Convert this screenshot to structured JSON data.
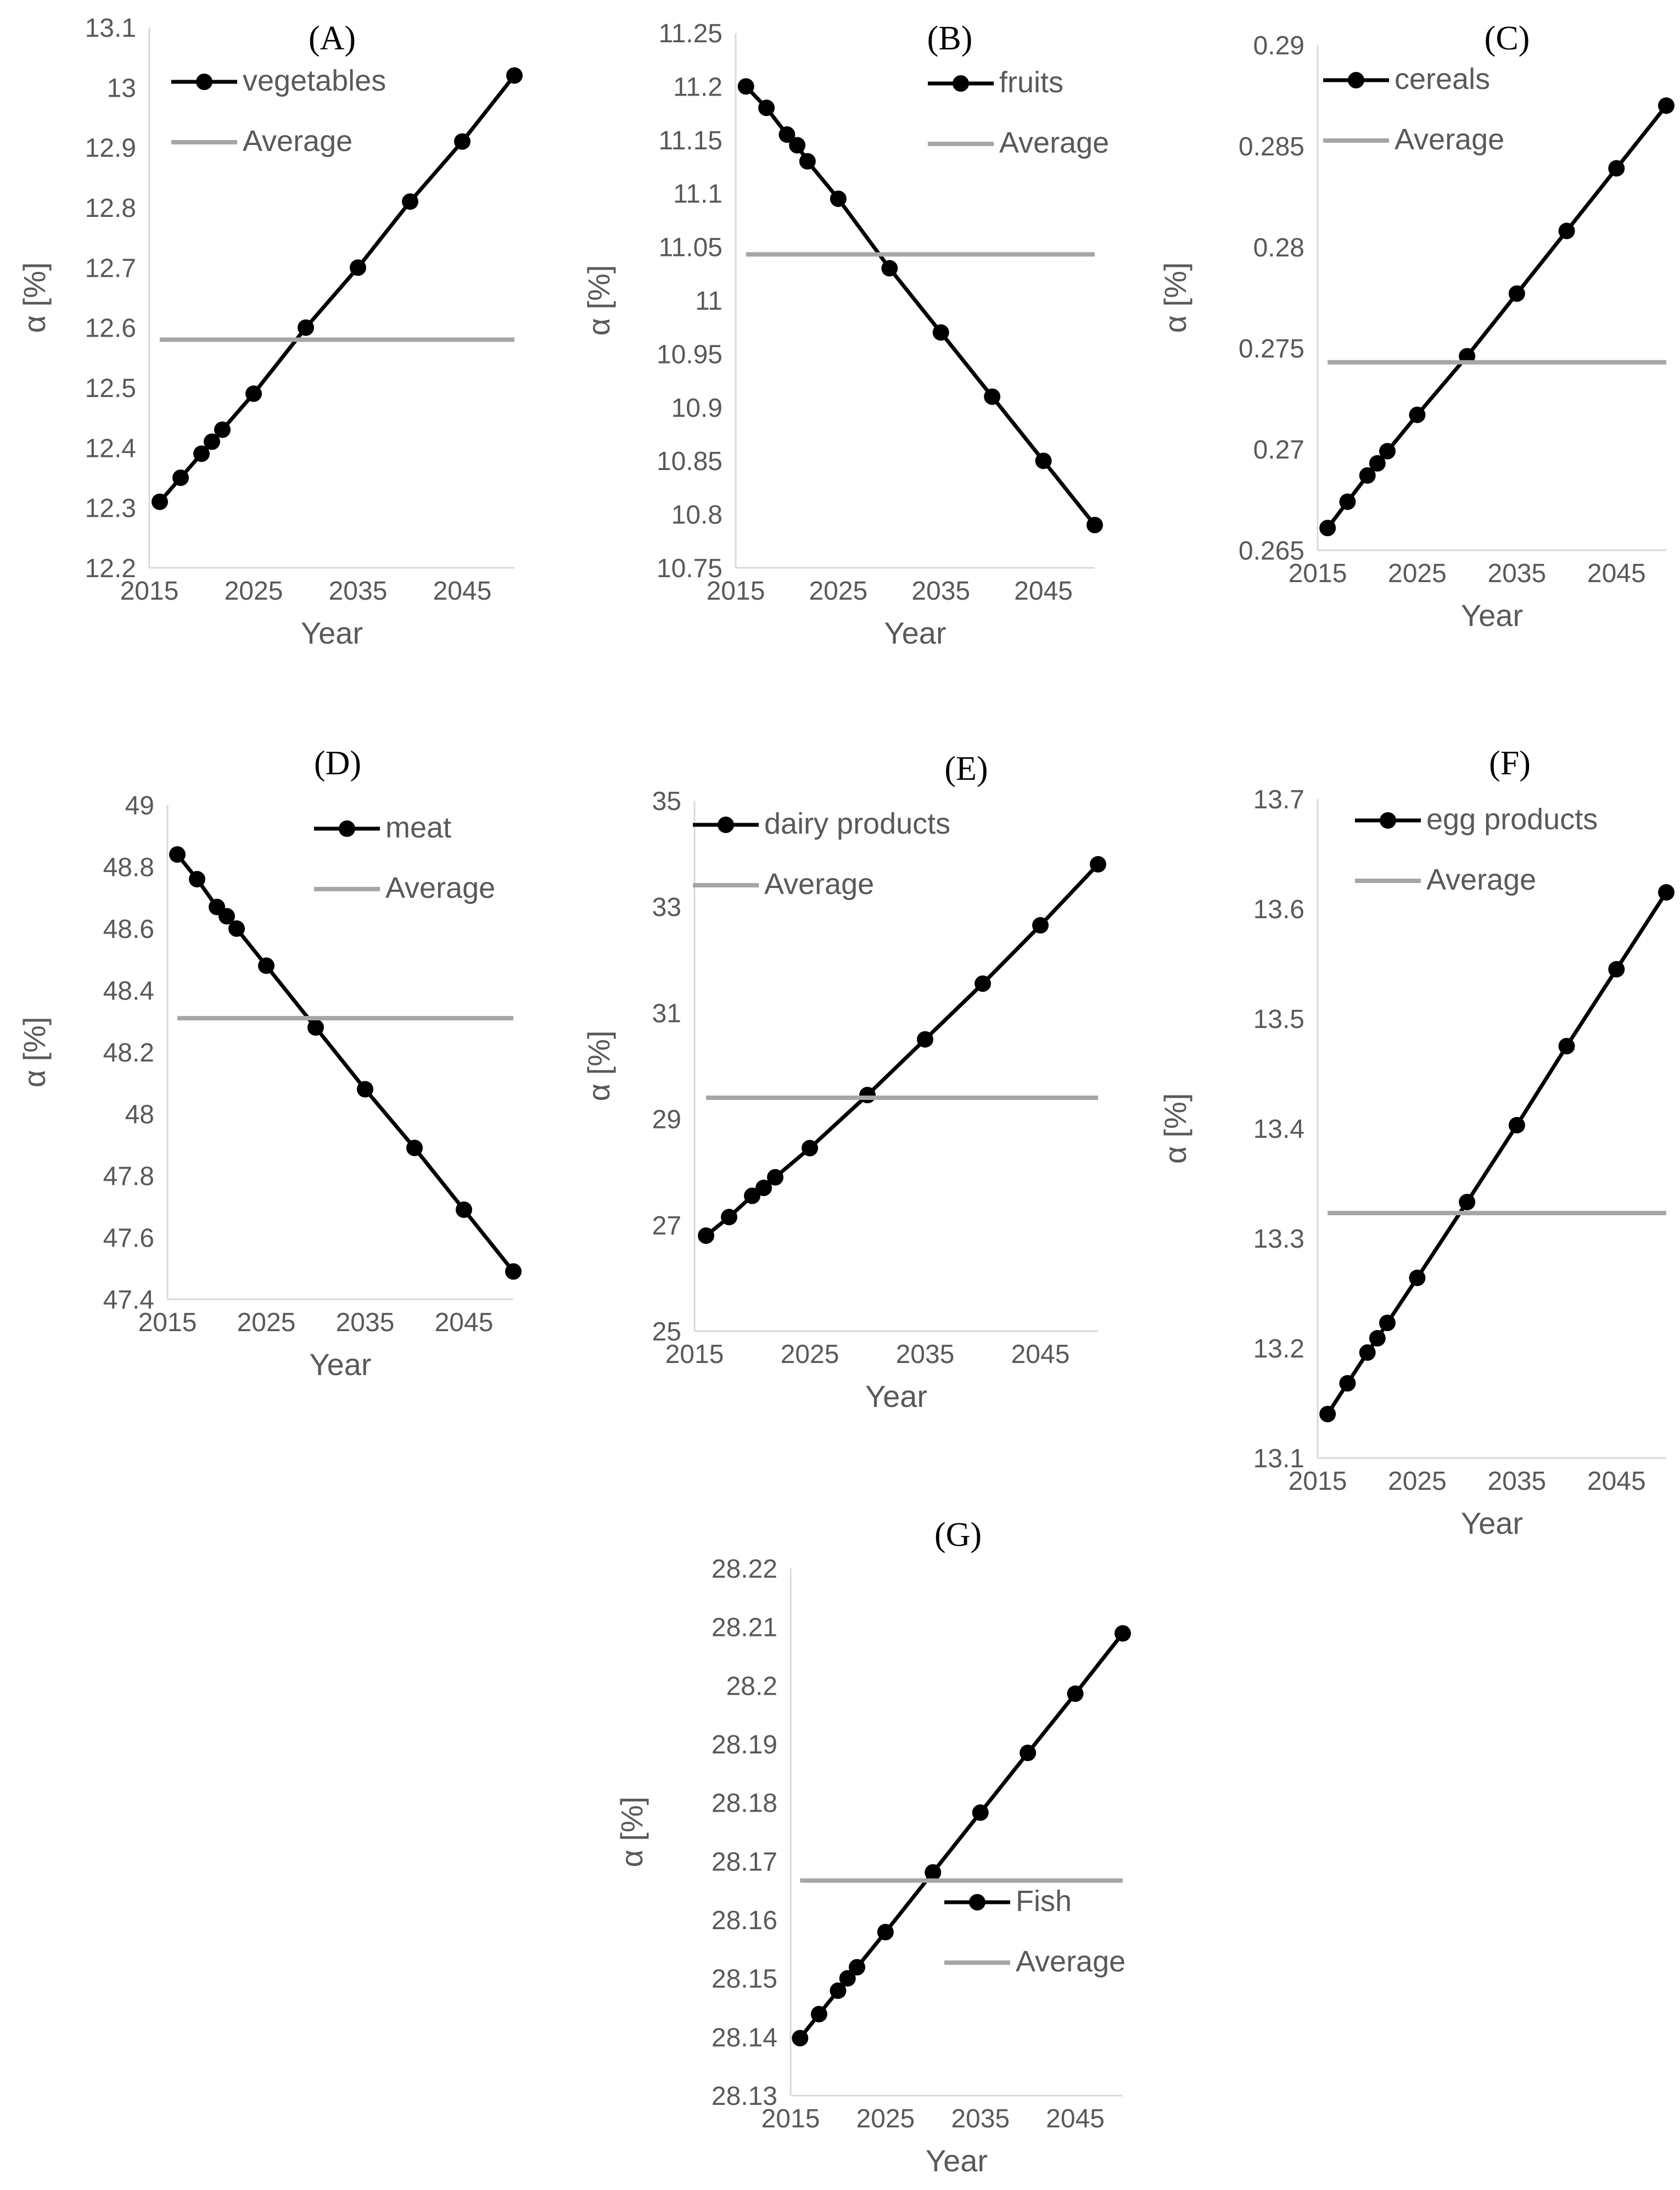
{
  "figure": {
    "xlabel_text": "Year",
    "ylabel_text": "α [%]"
  },
  "chart_data": [
    {
      "type": "line",
      "panel": "A",
      "title": "(A)",
      "xlabel": "Year",
      "ylabel": "α [%]",
      "xlim": [
        2015,
        2050
      ],
      "ylim": [
        12.2,
        13.1
      ],
      "x_ticks": [
        2015,
        2025,
        2035,
        2045
      ],
      "y_ticks": [
        "12.2",
        "12.3",
        "12.4",
        "12.5",
        "12.6",
        "12.7",
        "12.8",
        "12.9",
        "13",
        "13.1"
      ],
      "legend_position": "top-left",
      "series": [
        {
          "name": "vegetables",
          "color": "#000000",
          "marker": "circle",
          "x": [
            2016,
            2018,
            2020,
            2021,
            2022,
            2025,
            2030,
            2035,
            2040,
            2045,
            2050
          ],
          "y": [
            12.31,
            12.35,
            12.39,
            12.41,
            12.43,
            12.49,
            12.6,
            12.7,
            12.81,
            12.91,
            13.02
          ]
        },
        {
          "name": "Average",
          "color": "#a6a6a6",
          "marker": "none",
          "x": [
            2016,
            2050
          ],
          "y": [
            12.58,
            12.58
          ]
        }
      ]
    },
    {
      "type": "line",
      "panel": "B",
      "title": "(B)",
      "xlabel": "Year",
      "ylabel": "α [%]",
      "xlim": [
        2015,
        2050
      ],
      "ylim": [
        10.75,
        11.25
      ],
      "x_ticks": [
        2015,
        2025,
        2035,
        2045
      ],
      "y_ticks": [
        "10.75",
        "10.8",
        "10.85",
        "10.9",
        "10.95",
        "11",
        "11.05",
        "11.1",
        "11.15",
        "11.2",
        "11.25"
      ],
      "legend_position": "top-right",
      "series": [
        {
          "name": "fruits",
          "color": "#000000",
          "marker": "circle",
          "x": [
            2016,
            2018,
            2020,
            2021,
            2022,
            2025,
            2030,
            2035,
            2040,
            2045,
            2050
          ],
          "y": [
            11.2,
            11.18,
            11.155,
            11.145,
            11.13,
            11.095,
            11.03,
            10.97,
            10.91,
            10.85,
            10.79
          ]
        },
        {
          "name": "Average",
          "color": "#a6a6a6",
          "marker": "none",
          "x": [
            2016,
            2050
          ],
          "y": [
            11.043,
            11.043
          ]
        }
      ]
    },
    {
      "type": "line",
      "panel": "C",
      "title": "(C)",
      "xlabel": "Year",
      "ylabel": "α [%]",
      "xlim": [
        2015,
        2050
      ],
      "ylim": [
        0.265,
        0.29
      ],
      "x_ticks": [
        2015,
        2025,
        2035,
        2045
      ],
      "y_ticks": [
        "0.265",
        "0.27",
        "0.275",
        "0.28",
        "0.285",
        "0.29"
      ],
      "legend_position": "top-left",
      "series": [
        {
          "name": "cereals",
          "color": "#000000",
          "marker": "circle",
          "x": [
            2016,
            2018,
            2020,
            2021,
            2022,
            2025,
            2030,
            2035,
            2040,
            2045,
            2050
          ],
          "y": [
            0.2661,
            0.2674,
            0.2687,
            0.2693,
            0.2699,
            0.2717,
            0.2746,
            0.2777,
            0.2808,
            0.2839,
            0.287
          ]
        },
        {
          "name": "Average",
          "color": "#a6a6a6",
          "marker": "none",
          "x": [
            2016,
            2050
          ],
          "y": [
            0.2743,
            0.2743
          ]
        }
      ]
    },
    {
      "type": "line",
      "panel": "D",
      "title": "(D)",
      "xlabel": "Year",
      "ylabel": "α [%]",
      "xlim": [
        2015,
        2050
      ],
      "ylim": [
        47.4,
        49
      ],
      "x_ticks": [
        2015,
        2025,
        2035,
        2045
      ],
      "y_ticks": [
        "47.4",
        "47.6",
        "47.8",
        "48",
        "48.2",
        "48.4",
        "48.6",
        "48.8",
        "49"
      ],
      "legend_position": "top-right",
      "series": [
        {
          "name": "meat",
          "color": "#000000",
          "marker": "circle",
          "x": [
            2016,
            2018,
            2020,
            2021,
            2022,
            2025,
            2030,
            2035,
            2040,
            2045,
            2050
          ],
          "y": [
            48.84,
            48.76,
            48.67,
            48.64,
            48.6,
            48.48,
            48.28,
            48.08,
            47.89,
            47.69,
            47.49
          ]
        },
        {
          "name": "Average",
          "color": "#a6a6a6",
          "marker": "none",
          "x": [
            2016,
            2050
          ],
          "y": [
            48.31,
            48.31
          ]
        }
      ]
    },
    {
      "type": "line",
      "panel": "E",
      "title": "(E)",
      "xlabel": "Year",
      "ylabel": "α [%]",
      "xlim": [
        2015,
        2050
      ],
      "ylim": [
        25,
        35
      ],
      "x_ticks": [
        2015,
        2025,
        2035,
        2045
      ],
      "y_ticks": [
        "25",
        "27",
        "29",
        "31",
        "33",
        "35"
      ],
      "legend_position": "top-left",
      "series": [
        {
          "name": "dairy products",
          "color": "#000000",
          "marker": "circle",
          "x": [
            2016,
            2018,
            2020,
            2021,
            2022,
            2025,
            2030,
            2035,
            2040,
            2045,
            2050
          ],
          "y": [
            26.8,
            27.15,
            27.55,
            27.7,
            27.9,
            28.45,
            29.45,
            30.5,
            31.55,
            32.65,
            33.8
          ]
        },
        {
          "name": "Average",
          "color": "#a6a6a6",
          "marker": "none",
          "x": [
            2016,
            2050
          ],
          "y": [
            29.4,
            29.4
          ]
        }
      ]
    },
    {
      "type": "line",
      "panel": "F",
      "title": "(F)",
      "xlabel": "Year",
      "ylabel": "α [%]",
      "xlim": [
        2015,
        2050
      ],
      "ylim": [
        13.1,
        13.7
      ],
      "x_ticks": [
        2015,
        2025,
        2035,
        2045
      ],
      "y_ticks": [
        "13.1",
        "13.2",
        "13.3",
        "13.4",
        "13.5",
        "13.6",
        "13.7"
      ],
      "legend_position": "top-left",
      "series": [
        {
          "name": "egg products",
          "color": "#000000",
          "marker": "circle",
          "x": [
            2016,
            2018,
            2020,
            2021,
            2022,
            2025,
            2030,
            2035,
            2040,
            2045,
            2050
          ],
          "y": [
            13.14,
            13.168,
            13.196,
            13.209,
            13.223,
            13.264,
            13.333,
            13.403,
            13.475,
            13.545,
            13.615
          ]
        },
        {
          "name": "Average",
          "color": "#a6a6a6",
          "marker": "none",
          "x": [
            2016,
            2050
          ],
          "y": [
            13.323,
            13.323
          ]
        }
      ]
    },
    {
      "type": "line",
      "panel": "G",
      "title": "(G)",
      "xlabel": "Year",
      "ylabel": "α [%]",
      "xlim": [
        2015,
        2050
      ],
      "ylim": [
        28.13,
        28.22
      ],
      "x_ticks": [
        2015,
        2025,
        2035,
        2045
      ],
      "y_ticks": [
        "28.13",
        "28.14",
        "28.15",
        "28.16",
        "28.17",
        "28.18",
        "28.19",
        "28.2",
        "28.21",
        "28.22"
      ],
      "legend_position": "bottom-right",
      "series": [
        {
          "name": "Fish",
          "color": "#000000",
          "marker": "circle",
          "x": [
            2016,
            2018,
            2020,
            2021,
            2022,
            2025,
            2030,
            2035,
            2040,
            2045,
            2050
          ],
          "y": [
            28.1398,
            28.1439,
            28.1479,
            28.15,
            28.1519,
            28.1579,
            28.1681,
            28.1783,
            28.1885,
            28.1986,
            28.2089
          ]
        },
        {
          "name": "Average",
          "color": "#a6a6a6",
          "marker": "none",
          "x": [
            2016,
            2050
          ],
          "y": [
            28.1667,
            28.1667
          ]
        }
      ]
    }
  ]
}
